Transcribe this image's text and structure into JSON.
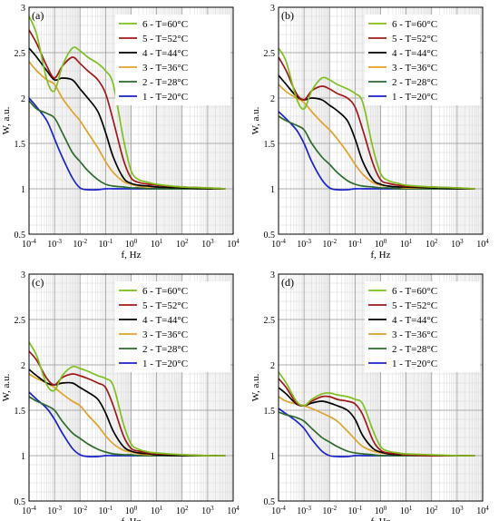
{
  "figure": {
    "series_styles": [
      {
        "index_label": "1",
        "temp_label": "T=20°C",
        "color": "#1a22cc"
      },
      {
        "index_label": "2",
        "temp_label": "T=28°C",
        "color": "#2d6b2d"
      },
      {
        "index_label": "3",
        "temp_label": "T=36°C",
        "color": "#e0a22a"
      },
      {
        "index_label": "4",
        "temp_label": "T=44°C",
        "color": "#000000"
      },
      {
        "index_label": "5",
        "temp_label": "T=52°C",
        "color": "#a01818"
      },
      {
        "index_label": "6",
        "temp_label": "T=60°C",
        "color": "#7fbf1f"
      }
    ]
  },
  "chart_data": [
    {
      "type": "line",
      "panel_label": "(a)",
      "xlabel": "f, Hz",
      "ylabel": "W, a.u.",
      "x_scale": "log",
      "xlim": [
        0.0001,
        10000
      ],
      "ylim": [
        0.5,
        3
      ],
      "x_ticks": [
        "10-4",
        "10-3",
        "10-2",
        "10-1",
        "100",
        "101",
        "102",
        "103",
        "104"
      ],
      "y_ticks": [
        "0.5",
        "1",
        "1.5",
        "2",
        "2.5",
        "3"
      ],
      "grid": true,
      "legend_position": "top-right",
      "x": [
        0.0001,
        0.0002,
        0.0005,
        0.001,
        0.002,
        0.005,
        0.01,
        0.02,
        0.05,
        0.1,
        0.2,
        0.5,
        1,
        2,
        5,
        10,
        100,
        1000,
        5000
      ],
      "series": [
        {
          "name": "1 - T=20°C",
          "values": [
            2.0,
            1.9,
            1.75,
            1.55,
            1.35,
            1.12,
            1.01,
            0.99,
            0.99,
            1.0,
            1.0,
            1.0,
            1.0,
            1.0,
            1.0,
            1.0,
            1.0,
            1.0,
            1.0
          ]
        },
        {
          "name": "2 - T=28°C",
          "values": [
            1.97,
            1.88,
            1.83,
            1.78,
            1.62,
            1.4,
            1.3,
            1.2,
            1.1,
            1.05,
            1.03,
            1.02,
            1.01,
            1.01,
            1.0,
            1.0,
            1.0,
            1.0,
            1.0
          ]
        },
        {
          "name": "3 - T=36°C",
          "values": [
            2.4,
            2.3,
            2.2,
            2.15,
            2.0,
            1.85,
            1.75,
            1.62,
            1.45,
            1.3,
            1.18,
            1.08,
            1.05,
            1.03,
            1.02,
            1.02,
            1.01,
            1.0,
            1.0
          ]
        },
        {
          "name": "4 - T=44°C",
          "values": [
            2.55,
            2.45,
            2.3,
            2.2,
            2.22,
            2.2,
            2.1,
            2.0,
            1.85,
            1.62,
            1.35,
            1.12,
            1.06,
            1.04,
            1.03,
            1.02,
            1.01,
            1.0,
            1.0
          ]
        },
        {
          "name": "5 - T=52°C",
          "values": [
            2.75,
            2.6,
            2.35,
            2.22,
            2.35,
            2.45,
            2.38,
            2.3,
            2.2,
            2.05,
            1.75,
            1.32,
            1.12,
            1.07,
            1.05,
            1.04,
            1.02,
            1.01,
            1.0
          ]
        },
        {
          "name": "6 - T=60°C",
          "values": [
            2.9,
            2.7,
            2.2,
            2.08,
            2.35,
            2.55,
            2.52,
            2.45,
            2.38,
            2.3,
            2.15,
            1.55,
            1.2,
            1.1,
            1.07,
            1.05,
            1.02,
            1.01,
            1.0
          ]
        }
      ]
    },
    {
      "type": "line",
      "panel_label": "(b)",
      "xlabel": "f, Hz",
      "ylabel": "W, a.u.",
      "x_scale": "log",
      "xlim": [
        0.0001,
        10000
      ],
      "ylim": [
        0.5,
        3
      ],
      "x_ticks": [
        "10-4",
        "10-3",
        "10-2",
        "10-1",
        "100",
        "101",
        "102",
        "103",
        "104"
      ],
      "y_ticks": [
        "0.5",
        "1",
        "1.5",
        "2",
        "2.5",
        "3"
      ],
      "grid": true,
      "legend_position": "top-right",
      "x": [
        0.0001,
        0.0002,
        0.0005,
        0.001,
        0.002,
        0.005,
        0.01,
        0.02,
        0.05,
        0.1,
        0.2,
        0.5,
        1,
        2,
        5,
        10,
        100,
        1000,
        5000
      ],
      "series": [
        {
          "name": "1 - T=20°C",
          "values": [
            1.85,
            1.77,
            1.65,
            1.5,
            1.3,
            1.1,
            1.01,
            0.99,
            0.99,
            1.0,
            1.0,
            1.0,
            1.0,
            1.0,
            1.0,
            1.0,
            1.0,
            1.0,
            1.0
          ]
        },
        {
          "name": "2 - T=28°C",
          "values": [
            1.8,
            1.75,
            1.7,
            1.65,
            1.5,
            1.35,
            1.27,
            1.18,
            1.09,
            1.05,
            1.03,
            1.02,
            1.01,
            1.01,
            1.0,
            1.0,
            1.0,
            1.0,
            1.0
          ]
        },
        {
          "name": "3 - T=36°C",
          "values": [
            2.15,
            2.07,
            2.0,
            1.95,
            1.85,
            1.73,
            1.65,
            1.55,
            1.4,
            1.27,
            1.16,
            1.07,
            1.04,
            1.03,
            1.02,
            1.01,
            1.01,
            1.0,
            1.0
          ]
        },
        {
          "name": "4 - T=44°C",
          "values": [
            2.25,
            2.15,
            2.02,
            1.98,
            2.0,
            1.98,
            1.92,
            1.86,
            1.75,
            1.55,
            1.3,
            1.1,
            1.05,
            1.03,
            1.02,
            1.02,
            1.01,
            1.0,
            1.0
          ]
        },
        {
          "name": "5 - T=52°C",
          "values": [
            2.45,
            2.3,
            2.05,
            1.98,
            2.08,
            2.13,
            2.1,
            2.05,
            2.0,
            1.9,
            1.65,
            1.28,
            1.1,
            1.06,
            1.04,
            1.03,
            1.02,
            1.01,
            1.0
          ]
        },
        {
          "name": "6 - T=60°C",
          "values": [
            2.55,
            2.4,
            2.0,
            1.88,
            2.08,
            2.22,
            2.2,
            2.15,
            2.1,
            2.05,
            1.95,
            1.45,
            1.17,
            1.09,
            1.06,
            1.04,
            1.02,
            1.01,
            1.0
          ]
        }
      ]
    },
    {
      "type": "line",
      "panel_label": "(c)",
      "xlabel": "f, Hz",
      "ylabel": "W, a.u.",
      "x_scale": "log",
      "xlim": [
        0.0001,
        10000
      ],
      "ylim": [
        0.5,
        3
      ],
      "x_ticks": [
        "10-4",
        "10-3",
        "10-2",
        "10-1",
        "100",
        "101",
        "102",
        "103",
        "104"
      ],
      "y_ticks": [
        "0.5",
        "1",
        "1.5",
        "2",
        "2.5",
        "3"
      ],
      "grid": true,
      "legend_position": "top-right",
      "x": [
        0.0001,
        0.0002,
        0.0005,
        0.001,
        0.002,
        0.005,
        0.01,
        0.02,
        0.05,
        0.1,
        0.2,
        0.5,
        1,
        2,
        5,
        10,
        100,
        1000,
        5000
      ],
      "series": [
        {
          "name": "1 - T=20°C",
          "values": [
            1.7,
            1.62,
            1.52,
            1.4,
            1.25,
            1.08,
            1.01,
            0.99,
            0.99,
            1.0,
            1.0,
            1.0,
            1.0,
            1.0,
            1.0,
            1.0,
            1.0,
            1.0,
            1.0
          ]
        },
        {
          "name": "2 - T=28°C",
          "values": [
            1.65,
            1.6,
            1.55,
            1.5,
            1.38,
            1.25,
            1.19,
            1.13,
            1.07,
            1.04,
            1.02,
            1.01,
            1.01,
            1.0,
            1.0,
            1.0,
            1.0,
            1.0,
            1.0
          ]
        },
        {
          "name": "3 - T=36°C",
          "values": [
            1.9,
            1.85,
            1.8,
            1.75,
            1.68,
            1.6,
            1.55,
            1.45,
            1.33,
            1.22,
            1.13,
            1.06,
            1.04,
            1.02,
            1.01,
            1.01,
            1.0,
            1.0,
            1.0
          ]
        },
        {
          "name": "4 - T=44°C",
          "values": [
            1.95,
            1.88,
            1.8,
            1.78,
            1.8,
            1.8,
            1.75,
            1.7,
            1.62,
            1.47,
            1.27,
            1.1,
            1.05,
            1.03,
            1.02,
            1.01,
            1.0,
            1.0,
            1.0
          ]
        },
        {
          "name": "5 - T=52°C",
          "values": [
            2.15,
            2.05,
            1.85,
            1.78,
            1.86,
            1.9,
            1.88,
            1.85,
            1.8,
            1.75,
            1.55,
            1.22,
            1.08,
            1.05,
            1.03,
            1.02,
            1.01,
            1.0,
            1.0
          ]
        },
        {
          "name": "6 - T=60°C",
          "values": [
            2.25,
            2.1,
            1.78,
            1.72,
            1.88,
            1.98,
            1.96,
            1.93,
            1.88,
            1.85,
            1.77,
            1.35,
            1.13,
            1.07,
            1.04,
            1.03,
            1.01,
            1.0,
            1.0
          ]
        }
      ]
    },
    {
      "type": "line",
      "panel_label": "(d)",
      "xlabel": "f, Hz",
      "ylabel": "W, a.u.",
      "x_scale": "log",
      "xlim": [
        0.0001,
        10000
      ],
      "ylim": [
        0.5,
        3
      ],
      "x_ticks": [
        "10-4",
        "10-3",
        "10-2",
        "10-1",
        "100",
        "101",
        "102",
        "103",
        "104"
      ],
      "y_ticks": [
        "0.5",
        "1",
        "1.5",
        "2",
        "2.5",
        "3"
      ],
      "grid": true,
      "legend_position": "top-right",
      "x": [
        0.0001,
        0.0002,
        0.0005,
        0.001,
        0.002,
        0.005,
        0.01,
        0.02,
        0.05,
        0.1,
        0.2,
        0.5,
        1,
        2,
        5,
        10,
        100,
        1000,
        5000
      ],
      "series": [
        {
          "name": "1 - T=20°C",
          "values": [
            1.52,
            1.46,
            1.38,
            1.3,
            1.18,
            1.05,
            1.0,
            0.99,
            0.99,
            1.0,
            1.0,
            1.0,
            1.0,
            1.0,
            1.0,
            1.0,
            1.0,
            1.0,
            1.0
          ]
        },
        {
          "name": "2 - T=28°C",
          "values": [
            1.48,
            1.45,
            1.42,
            1.38,
            1.3,
            1.2,
            1.15,
            1.1,
            1.05,
            1.03,
            1.02,
            1.01,
            1.0,
            1.0,
            1.0,
            1.0,
            1.0,
            1.0,
            1.0
          ]
        },
        {
          "name": "3 - T=36°C",
          "values": [
            1.65,
            1.6,
            1.57,
            1.55,
            1.52,
            1.47,
            1.43,
            1.38,
            1.27,
            1.18,
            1.1,
            1.05,
            1.03,
            1.02,
            1.01,
            1.01,
            1.0,
            1.0,
            1.0
          ]
        },
        {
          "name": "4 - T=44°C",
          "values": [
            1.75,
            1.68,
            1.57,
            1.55,
            1.58,
            1.6,
            1.58,
            1.55,
            1.5,
            1.4,
            1.22,
            1.08,
            1.04,
            1.02,
            1.01,
            1.01,
            1.0,
            1.0,
            1.0
          ]
        },
        {
          "name": "5 - T=52°C",
          "values": [
            1.85,
            1.75,
            1.58,
            1.55,
            1.6,
            1.65,
            1.65,
            1.62,
            1.6,
            1.57,
            1.45,
            1.17,
            1.06,
            1.03,
            1.02,
            1.01,
            1.0,
            1.0,
            1.0
          ]
        },
        {
          "name": "6 - T=60°C",
          "values": [
            1.92,
            1.8,
            1.6,
            1.55,
            1.62,
            1.68,
            1.69,
            1.67,
            1.65,
            1.62,
            1.57,
            1.28,
            1.1,
            1.05,
            1.03,
            1.02,
            1.01,
            1.0,
            1.0
          ]
        }
      ]
    }
  ]
}
